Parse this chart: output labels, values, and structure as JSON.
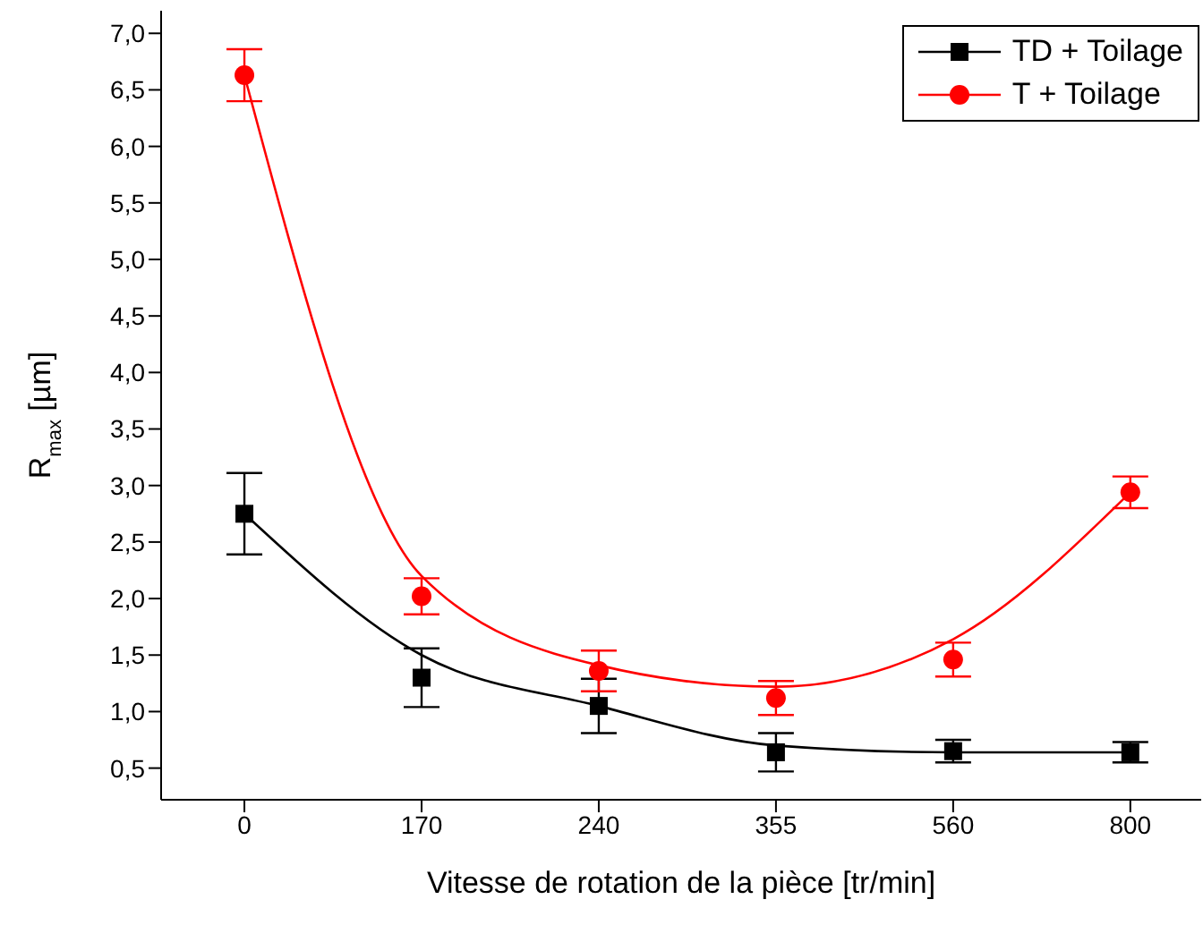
{
  "chart_data": {
    "type": "scatter",
    "xlabel": "Vitesse de rotation de la pièce [tr/min]",
    "ylabel": "R$_{max}$ [µm]",
    "categories": [
      "0",
      "170",
      "240",
      "355",
      "560",
      "800"
    ],
    "series": [
      {
        "name": "TD + Toilage",
        "color": "#000000",
        "marker": "square",
        "values": [
          2.75,
          1.3,
          1.05,
          0.64,
          0.65,
          0.64
        ],
        "errors": [
          0.36,
          0.26,
          0.24,
          0.17,
          0.1,
          0.09
        ]
      },
      {
        "name": "T + Toilage",
        "color": "#ff0000",
        "marker": "circle",
        "values": [
          6.63,
          2.02,
          1.36,
          1.12,
          1.46,
          2.94
        ],
        "errors": [
          0.23,
          0.16,
          0.18,
          0.15,
          0.15,
          0.14
        ]
      },
      {
        "type": "line",
        "color": "#000000",
        "marker": "none",
        "values": [
          2.75,
          1.5,
          1.05,
          0.7,
          0.64,
          0.64
        ]
      },
      {
        "type": "line",
        "color": "#ff0000",
        "marker": "none",
        "values": [
          6.63,
          2.2,
          1.41,
          1.22,
          1.64,
          2.94
        ]
      }
    ],
    "ylim": [
      0.22,
      7.2
    ],
    "yticks": [
      {
        "value": 0.5,
        "label": "0,5"
      },
      {
        "value": 1,
        "label": "1,0"
      },
      {
        "value": 1.5,
        "label": "1,5"
      },
      {
        "value": 2,
        "label": "2,0"
      },
      {
        "value": 2.5,
        "label": "2,5"
      },
      {
        "value": 3,
        "label": "3,0"
      },
      {
        "value": 3.5,
        "label": "3,5"
      },
      {
        "value": 4,
        "label": "4,0"
      },
      {
        "value": 4.5,
        "label": "4,5"
      },
      {
        "value": 5,
        "label": "5,0"
      },
      {
        "value": 5.5,
        "label": "5,5"
      },
      {
        "value": 6,
        "label": "6,0"
      },
      {
        "value": 6.5,
        "label": "6,5"
      },
      {
        "value": 7,
        "label": "7,0"
      }
    ],
    "grid": false,
    "legend": "top right"
  }
}
